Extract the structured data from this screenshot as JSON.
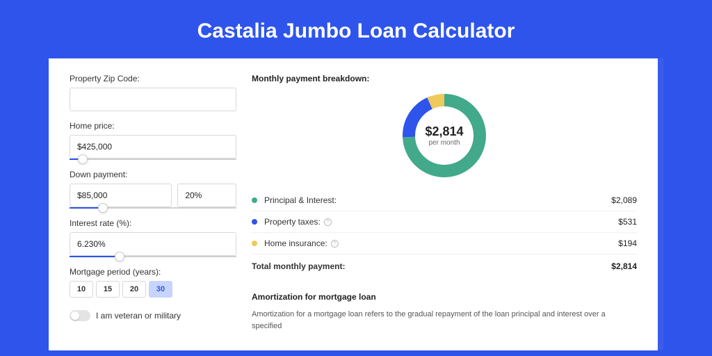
{
  "header": {
    "title": "Castalia Jumbo Loan Calculator"
  },
  "colors": {
    "page_bg": "#2e54eb",
    "card_bg": "#ffffff",
    "shadow_bg": "#3a5ced",
    "title_color": "#ffffff",
    "slider_fill": "#2e54eb",
    "period_active_bg": "#c7d4fb",
    "period_active_text": "#2e54eb"
  },
  "form": {
    "zip": {
      "label": "Property Zip Code:",
      "value": ""
    },
    "price": {
      "label": "Home price:",
      "value": "$425,000",
      "slider_pct": 8
    },
    "down": {
      "label": "Down payment:",
      "value": "$85,000",
      "pct_value": "20%",
      "slider_pct": 20
    },
    "rate": {
      "label": "Interest rate (%):",
      "value": "6.230%",
      "slider_pct": 30
    },
    "period": {
      "label": "Mortgage period (years):",
      "options": [
        "10",
        "15",
        "20",
        "30"
      ],
      "active_index": 3
    },
    "veteran": {
      "label": "I am veteran or military",
      "checked": false
    }
  },
  "breakdown": {
    "title": "Monthly payment breakdown:",
    "center_amount": "$2,814",
    "center_sub": "per month",
    "donut": {
      "size": 120,
      "stroke": 18,
      "segments": [
        {
          "key": "pi",
          "pct": 74.2,
          "color": "#42a98a"
        },
        {
          "key": "tax",
          "pct": 18.9,
          "color": "#2e54eb"
        },
        {
          "key": "ins",
          "pct": 6.9,
          "color": "#f0c95c"
        }
      ]
    },
    "rows": [
      {
        "dot": "#42a98a",
        "label": "Principal & Interest:",
        "info": false,
        "value": "$2,089"
      },
      {
        "dot": "#2e54eb",
        "label": "Property taxes:",
        "info": true,
        "value": "$531"
      },
      {
        "dot": "#f0c95c",
        "label": "Home insurance:",
        "info": true,
        "value": "$194"
      }
    ],
    "total": {
      "label": "Total monthly payment:",
      "value": "$2,814"
    }
  },
  "amortization": {
    "title": "Amortization for mortgage loan",
    "text": "Amortization for a mortgage loan refers to the gradual repayment of the loan principal and interest over a specified"
  }
}
